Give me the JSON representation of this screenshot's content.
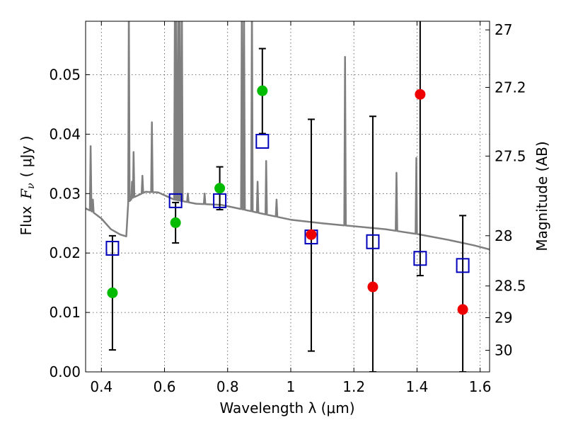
{
  "chart_data": {
    "type": "scatter",
    "xlabel": "Wavelength  λ (μm)",
    "ylabel_left": {
      "prefix": "Flux",
      "symbol": "F",
      "subscript": "ν",
      "unit": "( μJy )"
    },
    "ylabel_right": "Magnitude (AB)",
    "xlim": [
      0.35,
      1.63
    ],
    "ylim": [
      0.0,
      0.059
    ],
    "grid": true,
    "x_ticks": [
      {
        "value": 0.4,
        "label": "0.4"
      },
      {
        "value": 0.6,
        "label": "0.6"
      },
      {
        "value": 0.8,
        "label": "0.8"
      },
      {
        "value": 1.0,
        "label": "1"
      },
      {
        "value": 1.2,
        "label": "1.2"
      },
      {
        "value": 1.4,
        "label": "1.4"
      },
      {
        "value": 1.6,
        "label": "1.6"
      }
    ],
    "y_ticks": [
      {
        "value": 0.0,
        "label": "0.00"
      },
      {
        "value": 0.01,
        "label": "0.01"
      },
      {
        "value": 0.02,
        "label": "0.02"
      },
      {
        "value": 0.03,
        "label": "0.03"
      },
      {
        "value": 0.04,
        "label": "0.04"
      },
      {
        "value": 0.05,
        "label": "0.05"
      }
    ],
    "mag_ticks": [
      {
        "value": 27,
        "label": "27"
      },
      {
        "value": 27.2,
        "label": "27.2"
      },
      {
        "value": 27.5,
        "label": "27.5"
      },
      {
        "value": 28,
        "label": "28"
      },
      {
        "value": 28.5,
        "label": "28.5"
      },
      {
        "value": 29,
        "label": "29"
      },
      {
        "value": 30,
        "label": "30"
      }
    ],
    "colors": {
      "model": "#7f7f7f",
      "detections": "#00bb00",
      "upper_limits": "#ee0000",
      "model_photometry": "#0000bb",
      "errorbar": "#000000"
    },
    "model_sed": {
      "continuum": [
        [
          0.35,
          0.0275
        ],
        [
          0.37,
          0.027
        ],
        [
          0.4,
          0.0258
        ],
        [
          0.43,
          0.024
        ],
        [
          0.46,
          0.0231
        ],
        [
          0.479,
          0.0228
        ],
        [
          0.485,
          0.0285
        ],
        [
          0.5,
          0.0293
        ],
        [
          0.54,
          0.0303
        ],
        [
          0.58,
          0.0302
        ],
        [
          0.63,
          0.029
        ],
        [
          0.7,
          0.0283
        ],
        [
          0.78,
          0.0281
        ],
        [
          0.86,
          0.0272
        ],
        [
          0.92,
          0.0265
        ],
        [
          1.0,
          0.0256
        ],
        [
          1.1,
          0.025
        ],
        [
          1.2,
          0.0245
        ],
        [
          1.3,
          0.024
        ],
        [
          1.4,
          0.0232
        ],
        [
          1.5,
          0.0222
        ],
        [
          1.58,
          0.0213
        ],
        [
          1.63,
          0.0206
        ]
      ],
      "lines": [
        {
          "x": 0.366,
          "peak": 0.038
        },
        {
          "x": 0.373,
          "peak": 0.029
        },
        {
          "x": 0.487,
          "peak": 0.062
        },
        {
          "x": 0.497,
          "peak": 0.032
        },
        {
          "x": 0.502,
          "peak": 0.037
        },
        {
          "x": 0.53,
          "peak": 0.033
        },
        {
          "x": 0.56,
          "peak": 0.042
        },
        {
          "x": 0.633,
          "peak": 0.062
        },
        {
          "x": 0.637,
          "peak": 0.062
        },
        {
          "x": 0.644,
          "peak": 0.062
        },
        {
          "x": 0.648,
          "peak": 0.062
        },
        {
          "x": 0.655,
          "peak": 0.062
        },
        {
          "x": 0.674,
          "peak": 0.03
        },
        {
          "x": 0.727,
          "peak": 0.03
        },
        {
          "x": 0.845,
          "peak": 0.062
        },
        {
          "x": 0.852,
          "peak": 0.062
        },
        {
          "x": 0.877,
          "peak": 0.062
        },
        {
          "x": 0.895,
          "peak": 0.032
        },
        {
          "x": 0.922,
          "peak": 0.0355
        },
        {
          "x": 0.955,
          "peak": 0.029
        },
        {
          "x": 1.172,
          "peak": 0.053
        },
        {
          "x": 1.335,
          "peak": 0.0335
        },
        {
          "x": 1.398,
          "peak": 0.036
        }
      ]
    },
    "model_photometry": [
      {
        "x": 0.435,
        "y": 0.0208
      },
      {
        "x": 0.635,
        "y": 0.0288
      },
      {
        "x": 0.775,
        "y": 0.0288
      },
      {
        "x": 0.91,
        "y": 0.0388
      },
      {
        "x": 1.065,
        "y": 0.0227
      },
      {
        "x": 1.26,
        "y": 0.0219
      },
      {
        "x": 1.41,
        "y": 0.0191
      },
      {
        "x": 1.545,
        "y": 0.0179
      }
    ],
    "observed": [
      {
        "x": 0.435,
        "y": 0.0133,
        "err_low": 0.0037,
        "err_high": 0.0229,
        "kind": "detection"
      },
      {
        "x": 0.635,
        "y": 0.0251,
        "err_low": 0.0217,
        "err_high": 0.0285,
        "kind": "detection"
      },
      {
        "x": 0.775,
        "y": 0.0309,
        "err_low": 0.0273,
        "err_high": 0.0345,
        "kind": "detection"
      },
      {
        "x": 0.91,
        "y": 0.0473,
        "err_low": 0.0401,
        "err_high": 0.0544,
        "kind": "detection"
      },
      {
        "x": 1.065,
        "y": 0.0231,
        "err_low": 0.0035,
        "err_high": 0.0425,
        "kind": "upper_limit"
      },
      {
        "x": 1.26,
        "y": 0.0143,
        "err_low": 0.0,
        "err_high": 0.043,
        "kind": "upper_limit"
      },
      {
        "x": 1.41,
        "y": 0.0467,
        "err_low": 0.0162,
        "err_high": 0.06,
        "kind": "upper_limit"
      },
      {
        "x": 1.545,
        "y": 0.0105,
        "err_low": 0.0,
        "err_high": 0.0263,
        "kind": "upper_limit"
      }
    ]
  }
}
